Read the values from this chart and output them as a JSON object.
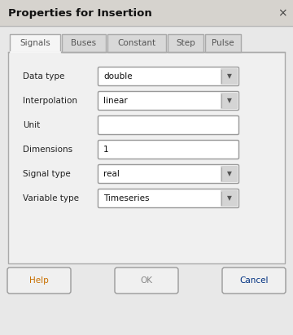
{
  "title": "Properties for Insertion",
  "close_button": "×",
  "tabs": [
    "Signals",
    "Buses",
    "Constant",
    "Step",
    "Pulse"
  ],
  "active_tab": "Signals",
  "fields": [
    {
      "label": "Data type",
      "value": "double",
      "type": "dropdown"
    },
    {
      "label": "Interpolation",
      "value": "linear",
      "type": "dropdown"
    },
    {
      "label": "Unit",
      "value": "",
      "type": "text"
    },
    {
      "label": "Dimensions",
      "value": "1",
      "type": "text"
    },
    {
      "label": "Signal type",
      "value": "real",
      "type": "dropdown"
    },
    {
      "label": "Variable type",
      "value": "Timeseries",
      "type": "dropdown"
    }
  ],
  "buttons_info": [
    {
      "label": "Help",
      "disabled": false
    },
    {
      "label": "OK",
      "disabled": true
    },
    {
      "label": "Cancel",
      "disabled": false
    }
  ],
  "bg_color": "#e8e8e8",
  "title_bar_color": "#d6d3ce",
  "panel_bg": "#f0f0f0",
  "tab_active_bg": "#f5f5f5",
  "tab_inactive_bg": "#d8d8d8",
  "field_bg": "#ffffff",
  "border_color": "#aaaaaa",
  "title_fontsize": 9.5,
  "tab_fontsize": 7.5,
  "field_fontsize": 7.5,
  "label_fontsize": 7.5,
  "button_fontsize": 7.5,
  "help_color": "#c87000",
  "cancel_color": "#003080",
  "ok_color": "#888888"
}
